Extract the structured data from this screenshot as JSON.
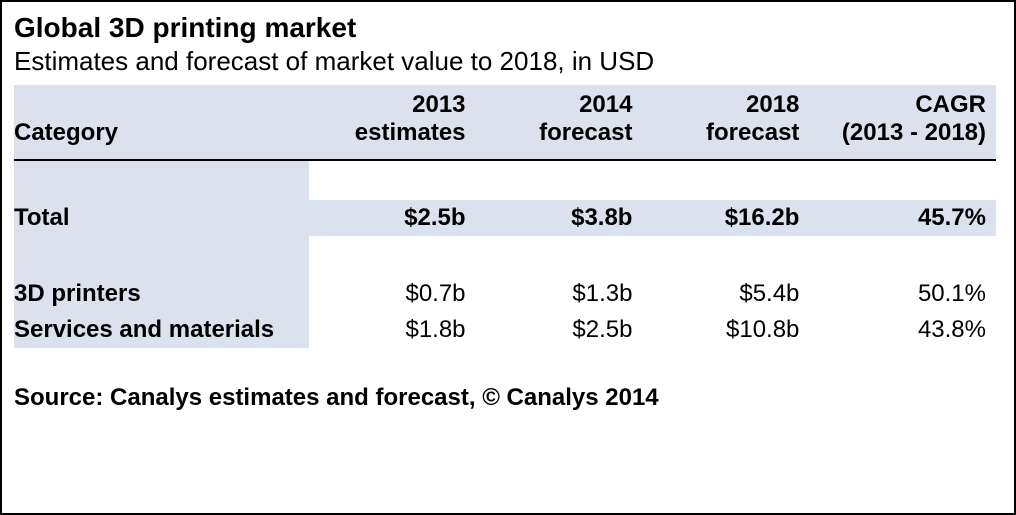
{
  "title": "Global 3D printing market",
  "subtitle": "Estimates and forecast of market value to 2018, in USD",
  "colors": {
    "header_shade": "#dbe2ee",
    "border": "#000000",
    "text": "#000000",
    "background": "#ffffff"
  },
  "typography": {
    "family": "Verdana",
    "title_fontsize": 28,
    "subtitle_fontsize": 26,
    "body_fontsize": 24
  },
  "table": {
    "type": "table",
    "columns": [
      {
        "key": "category",
        "line1": "",
        "line2": "Category",
        "align": "left",
        "width_pct": 30
      },
      {
        "key": "y2013",
        "line1": "2013",
        "line2": "estimates",
        "align": "right",
        "width_pct": 17
      },
      {
        "key": "y2014",
        "line1": "2014",
        "line2": "forecast",
        "align": "right",
        "width_pct": 17
      },
      {
        "key": "y2018",
        "line1": "2018",
        "line2": "forecast",
        "align": "right",
        "width_pct": 17
      },
      {
        "key": "cagr",
        "line1": "CAGR",
        "line2": "(2013 - 2018)",
        "align": "right",
        "width_pct": 19
      }
    ],
    "rows": [
      {
        "category": "Total",
        "y2013": "$2.5b",
        "y2014": "$3.8b",
        "y2018": "$16.2b",
        "cagr": "45.7%",
        "bold": true,
        "shaded": true
      },
      {
        "category": "3D printers",
        "y2013": "$0.7b",
        "y2014": "$1.3b",
        "y2018": "$5.4b",
        "cagr": "50.1%",
        "bold": false,
        "shaded": false
      },
      {
        "category": "Services and materials",
        "y2013": "$1.8b",
        "y2014": "$2.5b",
        "y2018": "$10.8b",
        "cagr": "43.8%",
        "bold": false,
        "shaded": false
      }
    ]
  },
  "source": "Source: Canalys estimates and forecast, © Canalys 2014"
}
